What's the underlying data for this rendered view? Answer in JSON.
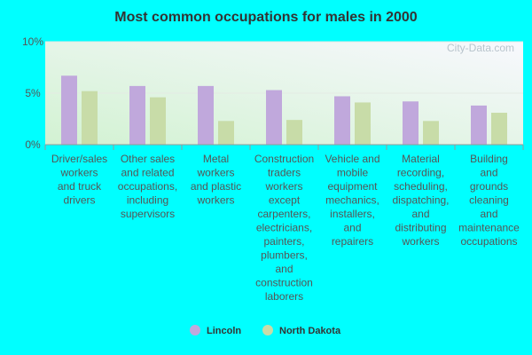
{
  "chart_data": {
    "type": "bar",
    "title": "Most common occupations for males in 2000",
    "watermark": "City-Data.com",
    "categories": [
      [
        "Driver/sales",
        "workers",
        "and truck",
        "drivers"
      ],
      [
        "Other sales",
        "and related",
        "occupations,",
        "including",
        "supervisors"
      ],
      [
        "Metal",
        "workers",
        "and plastic",
        "workers"
      ],
      [
        "Construction",
        "traders",
        "workers",
        "except",
        "carpenters,",
        "electricians,",
        "painters,",
        "plumbers,",
        "and",
        "construction",
        "laborers"
      ],
      [
        "Vehicle and",
        "mobile",
        "equipment",
        "mechanics,",
        "installers,",
        "and",
        "repairers"
      ],
      [
        "Material",
        "recording,",
        "scheduling,",
        "dispatching,",
        "and",
        "distributing",
        "workers"
      ],
      [
        "Building",
        "and",
        "grounds",
        "cleaning",
        "and",
        "maintenance",
        "occupations"
      ]
    ],
    "series": [
      {
        "name": "Lincoln",
        "color": "#C0A8DC",
        "values": [
          6.7,
          5.7,
          5.7,
          5.3,
          4.7,
          4.2,
          3.8
        ]
      },
      {
        "name": "North Dakota",
        "color": "#C8DCA8",
        "values": [
          5.2,
          4.6,
          2.3,
          2.4,
          4.1,
          2.3,
          3.1
        ]
      }
    ],
    "yticks": [
      "0%",
      "5%",
      "10%"
    ],
    "ytick_values": [
      0,
      5,
      10
    ],
    "ylim": [
      0,
      10
    ],
    "grid": true,
    "legend": "bottom-center"
  }
}
